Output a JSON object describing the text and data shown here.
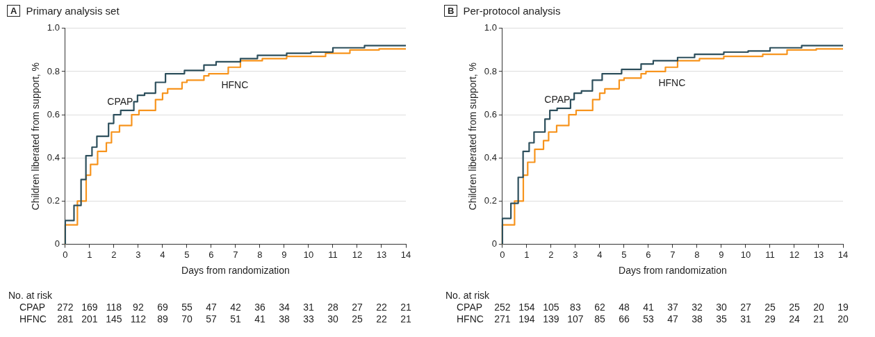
{
  "chart_data": [
    {
      "type": "step",
      "title": "Primary analysis set",
      "xlabel": "Days from randomization",
      "ylabel": "Children liberated from support, %",
      "xlim": [
        0,
        14
      ],
      "xticks": [
        0,
        1,
        2,
        3,
        4,
        5,
        6,
        7,
        8,
        9,
        10,
        11,
        12,
        13,
        14
      ],
      "ylim": [
        0,
        1
      ],
      "yticks": [
        0,
        {
          "value": 0.2,
          "label": "0.2"
        },
        {
          "value": 0.4,
          "label": "0.4"
        },
        {
          "value": 0.6,
          "label": "0.6"
        },
        {
          "value": 0.8,
          "label": "0.8"
        },
        {
          "value": 1,
          "label": "1.0"
        }
      ],
      "grid": "y",
      "legend": false,
      "line_style": "solid",
      "marker": "none",
      "annotations": [
        "A",
        "No. at risk",
        "CPAP",
        "272 169 118 92 69 55 47 42 36 34 31 28 27 22 21",
        "HFNC",
        "281 201 145 112 89 70 57 51 41 38 33 30 25 22 21"
      ],
      "series": [
        {
          "name": "CPAP",
          "color": "#2d4f5c",
          "x": [
            0,
            0.36,
            0.65,
            0.85,
            1.1,
            1.3,
            1.78,
            1.99,
            2.28,
            2.82,
            2.97,
            3.26,
            3.71,
            4.12,
            4.9,
            5.7,
            6.2,
            7.2,
            7.9,
            9.1,
            10.1,
            11,
            12.3,
            13.6,
            14
          ],
          "values": [
            0,
            0.11,
            0.18,
            0.3,
            0.41,
            0.45,
            0.5,
            0.56,
            0.6,
            0.62,
            0.66,
            0.69,
            0.7,
            0.75,
            0.79,
            0.805,
            0.83,
            0.845,
            0.86,
            0.875,
            0.885,
            0.89,
            0.91,
            0.92,
            0.92
          ]
        },
        {
          "name": "HFNC",
          "color": "#f7941d",
          "x": [
            0,
            0.5,
            0.86,
            1.04,
            1.33,
            1.69,
            1.9,
            2.23,
            2.73,
            3.03,
            3.71,
            4,
            4.21,
            4.8,
            5,
            5.7,
            5.9,
            6.7,
            7.2,
            8.1,
            9.1,
            10.7,
            11.7,
            12.9,
            13.9,
            14
          ],
          "values": [
            0,
            0.09,
            0.2,
            0.32,
            0.37,
            0.43,
            0.47,
            0.52,
            0.55,
            0.6,
            0.62,
            0.67,
            0.7,
            0.72,
            0.75,
            0.76,
            0.78,
            0.79,
            0.82,
            0.85,
            0.86,
            0.87,
            0.885,
            0.9,
            0.905,
            0.905
          ]
        }
      ]
    },
    {
      "type": "step",
      "title": "Per-protocol analysis",
      "xlabel": "Days from randomization",
      "ylabel": "Children liberated from support, %",
      "xlim": [
        0,
        14
      ],
      "xticks": [
        0,
        1,
        2,
        3,
        4,
        5,
        6,
        7,
        8,
        9,
        10,
        11,
        12,
        13,
        14
      ],
      "ylim": [
        0,
        1
      ],
      "yticks": [
        0,
        {
          "value": 0.2,
          "label": "0.2"
        },
        {
          "value": 0.4,
          "label": "0.4"
        },
        {
          "value": 0.6,
          "label": "0.6"
        },
        {
          "value": 0.8,
          "label": "0.8"
        },
        {
          "value": 1,
          "label": "1.0"
        }
      ],
      "grid": "y",
      "legend": false,
      "line_style": "solid",
      "marker": "none",
      "annotations": [
        "B",
        "No. at risk",
        "CPAP",
        "252 154 105 83 62 48 41 37 32 30 27 25 25 20 19",
        "HFNC",
        "271 194 139 107 85 66 53 47 38 35 31 29 24 21 20"
      ],
      "series": [
        {
          "name": "CPAP",
          "color": "#2d4f5c",
          "x": [
            0,
            0.35,
            0.65,
            0.85,
            1.1,
            1.3,
            1.75,
            1.95,
            2.25,
            2.8,
            2.95,
            3.25,
            3.7,
            4.1,
            4.9,
            5.7,
            6.2,
            7.2,
            7.9,
            9.1,
            10.1,
            11,
            12.3,
            13.6,
            14
          ],
          "values": [
            0,
            0.12,
            0.19,
            0.31,
            0.43,
            0.47,
            0.52,
            0.58,
            0.62,
            0.63,
            0.67,
            0.7,
            0.71,
            0.76,
            0.79,
            0.81,
            0.835,
            0.85,
            0.865,
            0.88,
            0.89,
            0.895,
            0.91,
            0.92,
            0.92
          ]
        },
        {
          "name": "HFNC",
          "color": "#f7941d",
          "x": [
            0,
            0.5,
            0.86,
            1.04,
            1.33,
            1.69,
            1.9,
            2.23,
            2.73,
            3.03,
            3.71,
            4,
            4.21,
            4.8,
            5,
            5.7,
            5.9,
            6.7,
            7.2,
            8.1,
            9.1,
            10.7,
            11.7,
            12.9,
            13.9,
            14
          ],
          "values": [
            0,
            0.09,
            0.2,
            0.32,
            0.38,
            0.44,
            0.48,
            0.52,
            0.55,
            0.6,
            0.62,
            0.67,
            0.7,
            0.72,
            0.76,
            0.77,
            0.79,
            0.8,
            0.82,
            0.85,
            0.86,
            0.87,
            0.88,
            0.9,
            0.905,
            0.905
          ]
        }
      ]
    }
  ]
}
